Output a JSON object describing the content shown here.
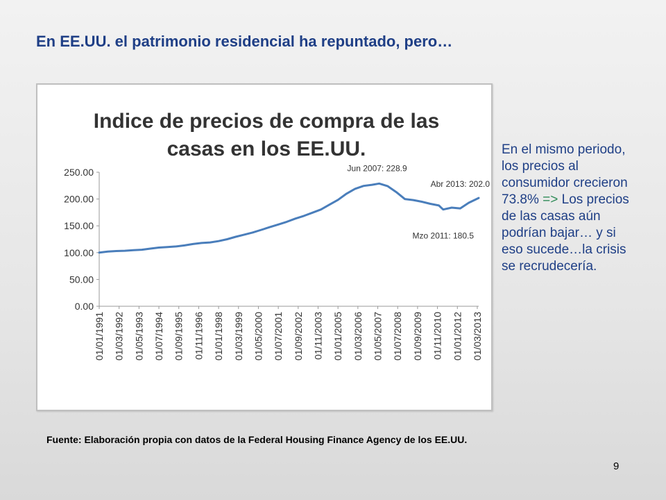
{
  "slide": {
    "title": "En EE.UU. el patrimonio residencial ha repuntado, pero…",
    "side_text_main": "En el mismo periodo, los precios al consumidor crecieron 73.8% ",
    "side_text_arrow": "=>",
    "side_text_rest": " Los precios de las casas aún podrían bajar… y si eso sucede…la crisis se recrudecería.",
    "source": "Fuente: Elaboración propia con datos de la Federal Housing Finance Agency de los EE.UU.",
    "page_number": "9"
  },
  "colors": {
    "title": "#1f3f86",
    "series": "#4a7ebb",
    "arrow": "#2e8b57"
  },
  "chart_data": {
    "type": "line",
    "title_lines": [
      "Indice de precios de compra de las",
      "casas en los EE.UU."
    ],
    "ylim": [
      0,
      250
    ],
    "yticks": [
      "0.00",
      "50.00",
      "100.00",
      "150.00",
      "200.00",
      "250.00"
    ],
    "xticks": [
      "01/01/1991",
      "01/03/1992",
      "01/05/1993",
      "01/07/1994",
      "01/09/1995",
      "01/11/1996",
      "01/01/1998",
      "01/03/1999",
      "01/05/2000",
      "01/07/2001",
      "01/09/2002",
      "01/11/2003",
      "01/01/2005",
      "01/03/2006",
      "01/05/2007",
      "01/07/2008",
      "01/09/2009",
      "01/11/2010",
      "01/01/2012",
      "01/03/2013"
    ],
    "grid": false,
    "legend": "none",
    "series": [
      {
        "x": [
          "1991-01",
          "1991-07",
          "1992-01",
          "1992-07",
          "1993-01",
          "1993-07",
          "1994-01",
          "1994-07",
          "1995-01",
          "1995-07",
          "1996-01",
          "1996-07",
          "1997-01",
          "1997-07",
          "1998-01",
          "1998-07",
          "1999-01",
          "1999-07",
          "2000-01",
          "2000-07",
          "2001-01",
          "2001-07",
          "2002-01",
          "2002-07",
          "2003-01",
          "2003-07",
          "2004-01",
          "2004-07",
          "2005-01",
          "2005-07",
          "2006-01",
          "2006-07",
          "2007-01",
          "2007-06",
          "2007-12",
          "2008-06",
          "2008-12",
          "2009-06",
          "2009-12",
          "2010-06",
          "2010-12",
          "2011-03",
          "2011-09",
          "2012-03",
          "2012-09",
          "2013-04"
        ],
        "values": [
          100.0,
          102.0,
          103.0,
          103.5,
          104.5,
          105.5,
          107.5,
          109.5,
          110.5,
          111.5,
          113.5,
          116.0,
          118.0,
          119.0,
          121.5,
          125.0,
          129.5,
          133.5,
          137.5,
          142.5,
          147.5,
          152.5,
          157.5,
          163.5,
          168.5,
          174.5,
          180.5,
          189.5,
          198.5,
          210.0,
          219.0,
          224.5,
          226.5,
          228.9,
          224.0,
          213.0,
          200.0,
          198.0,
          195.0,
          191.0,
          188.0,
          180.5,
          184.0,
          182.5,
          193.0,
          202.0
        ]
      }
    ],
    "annotations": [
      {
        "label": "Jun 2007: 228.9",
        "x": "2007-06",
        "y": 228.9
      },
      {
        "label": "Abr 2013: 202.0",
        "x": "2013-04",
        "y": 202.0
      },
      {
        "label": "Mzo 2011: 180.5",
        "x": "2011-03",
        "y": 180.5
      }
    ]
  }
}
